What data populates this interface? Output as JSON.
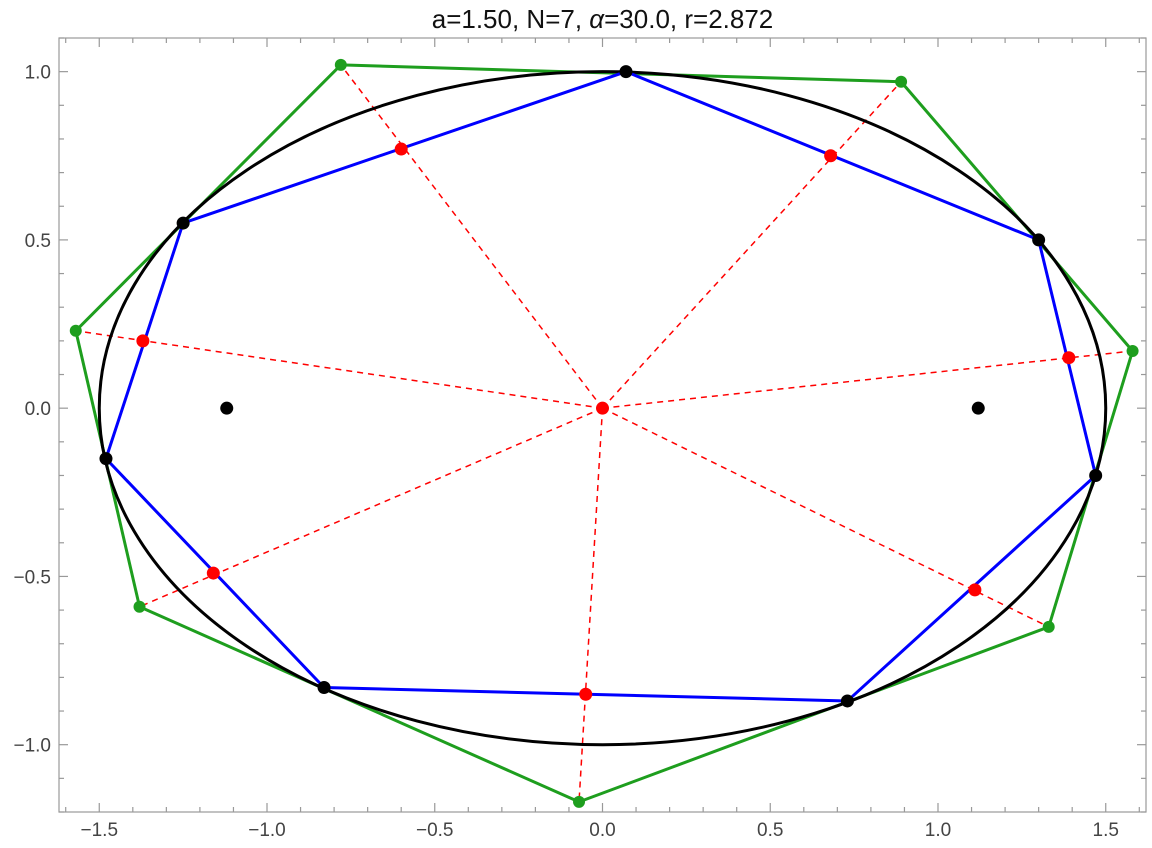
{
  "chart_data": {
    "type": "scatter",
    "title": "a=1.50, N=7, α=30.0, r=2.872",
    "title_parts": {
      "pre": "a=1.50, N=7, ",
      "alpha": "α",
      "post": "=30.0, r=2.872"
    },
    "xlim": [
      -1.62,
      1.62
    ],
    "ylim": [
      -1.2,
      1.1
    ],
    "x_ticks_major": [
      -1.5,
      -1.0,
      -0.5,
      0.0,
      0.5,
      1.0,
      1.5
    ],
    "x_tick_labels": [
      "−1.5",
      "−1.0",
      "−0.5",
      "0.0",
      "0.5",
      "1.0",
      "1.5"
    ],
    "y_ticks_major": [
      -1.0,
      -0.5,
      0.0,
      0.5,
      1.0
    ],
    "y_tick_labels": [
      "−1.0",
      "−0.5",
      "0.0",
      "0.5",
      "1.0"
    ],
    "ellipse": {
      "a": 1.5,
      "b": 1.0,
      "color": "#000000"
    },
    "foci": [
      [
        -1.12,
        0.0
      ],
      [
        1.12,
        0.0
      ]
    ],
    "center": [
      0.0,
      0.0
    ],
    "blue_polygon": {
      "color": "#0000ff",
      "points": [
        [
          0.07,
          1.0
        ],
        [
          1.3,
          0.5
        ],
        [
          1.47,
          -0.2
        ],
        [
          0.73,
          -0.87
        ],
        [
          -0.83,
          -0.83
        ],
        [
          -1.48,
          -0.15
        ],
        [
          -1.25,
          0.55
        ]
      ]
    },
    "green_polygon": {
      "color": "#1e9e1e",
      "points": [
        [
          -0.78,
          1.02
        ],
        [
          0.89,
          0.97
        ],
        [
          1.58,
          0.17
        ],
        [
          1.33,
          -0.65
        ],
        [
          -0.07,
          -1.17
        ],
        [
          -1.38,
          -0.59
        ],
        [
          -1.57,
          0.23
        ]
      ]
    },
    "red_points": {
      "color": "#ff0000",
      "points": [
        [
          -0.6,
          0.77
        ],
        [
          0.68,
          0.75
        ],
        [
          1.39,
          0.15
        ],
        [
          1.11,
          -0.54
        ],
        [
          -0.05,
          -0.85
        ],
        [
          -1.16,
          -0.49
        ],
        [
          -1.37,
          0.2
        ]
      ]
    },
    "grid": false
  }
}
